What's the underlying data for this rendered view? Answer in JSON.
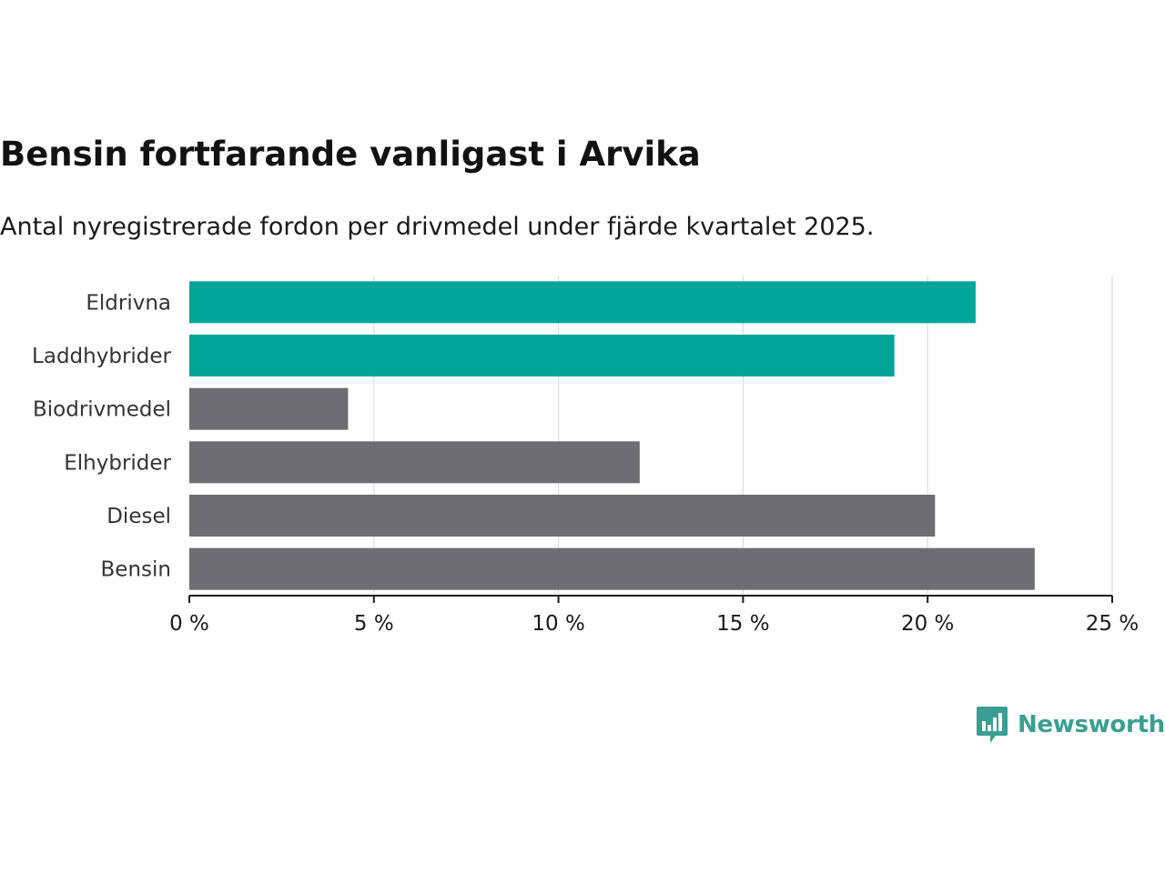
{
  "title": "Bensin fortfarande vanligast i Arvika",
  "subtitle": "Antal nyregistrerade fordon per drivmedel under fjärde kvartalet 2025.",
  "brand": {
    "name": "Newsworthy",
    "icon": "bar-chart-icon",
    "color": "#3a9f92"
  },
  "colors": {
    "highlight": "#00a598",
    "default": "#6e6d73",
    "grid": "#dcdcdc",
    "axis": "#1a1a1a"
  },
  "chart_data": {
    "type": "bar",
    "orientation": "horizontal",
    "title": "Bensin fortfarande vanligast i Arvika",
    "subtitle": "Antal nyregistrerade fordon per drivmedel under fjärde kvartalet 2025.",
    "xlabel": "",
    "ylabel": "",
    "categories": [
      "Eldrivna",
      "Laddhybrider",
      "Biodrivmedel",
      "Elhybrider",
      "Diesel",
      "Bensin"
    ],
    "values": [
      21.3,
      19.1,
      4.3,
      12.2,
      20.2,
      22.9
    ],
    "highlighted": [
      "Eldrivna",
      "Laddhybrider"
    ],
    "xlim": [
      0,
      25
    ],
    "xticks": [
      0,
      5,
      10,
      15,
      20,
      25
    ],
    "xtick_labels": [
      "0 %",
      "5 %",
      "10 %",
      "15 %",
      "20 %",
      "25 %"
    ],
    "grid": true,
    "legend": "none"
  }
}
